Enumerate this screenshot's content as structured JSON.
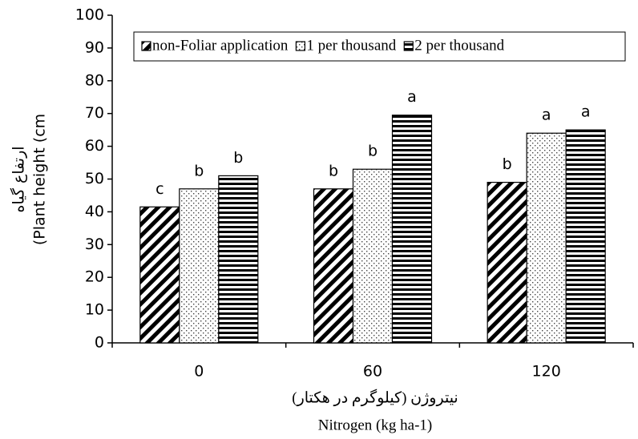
{
  "chart_data": {
    "type": "bar",
    "categories": [
      "0",
      "60",
      "120"
    ],
    "series": [
      {
        "name": "non-Foliar application",
        "color": "#000000",
        "pattern": "diagonal",
        "values": [
          41.5,
          47,
          49
        ],
        "letters": [
          "c",
          "b",
          "b"
        ]
      },
      {
        "name": "1 per thousand",
        "color": "#000000",
        "pattern": "dots",
        "values": [
          47,
          53,
          64
        ],
        "letters": [
          "b",
          "b",
          "a"
        ]
      },
      {
        "name": "2 per thousand",
        "color": "#000000",
        "pattern": "horizontal",
        "values": [
          51,
          69.5,
          65
        ],
        "letters": [
          "b",
          "a",
          "a"
        ]
      }
    ],
    "ylabel": [
      "ارتفاع گیاه",
      "(Plant height (cm"
    ],
    "xlabel": [
      "نیتروژن (کیلوگرم در هکتار)",
      "Nitrogen (kg ha-1)"
    ],
    "ylim": [
      0,
      100
    ],
    "yticks": [
      0,
      10,
      20,
      30,
      40,
      50,
      60,
      70,
      80,
      90,
      100
    ],
    "grid": false,
    "legend": "top"
  }
}
